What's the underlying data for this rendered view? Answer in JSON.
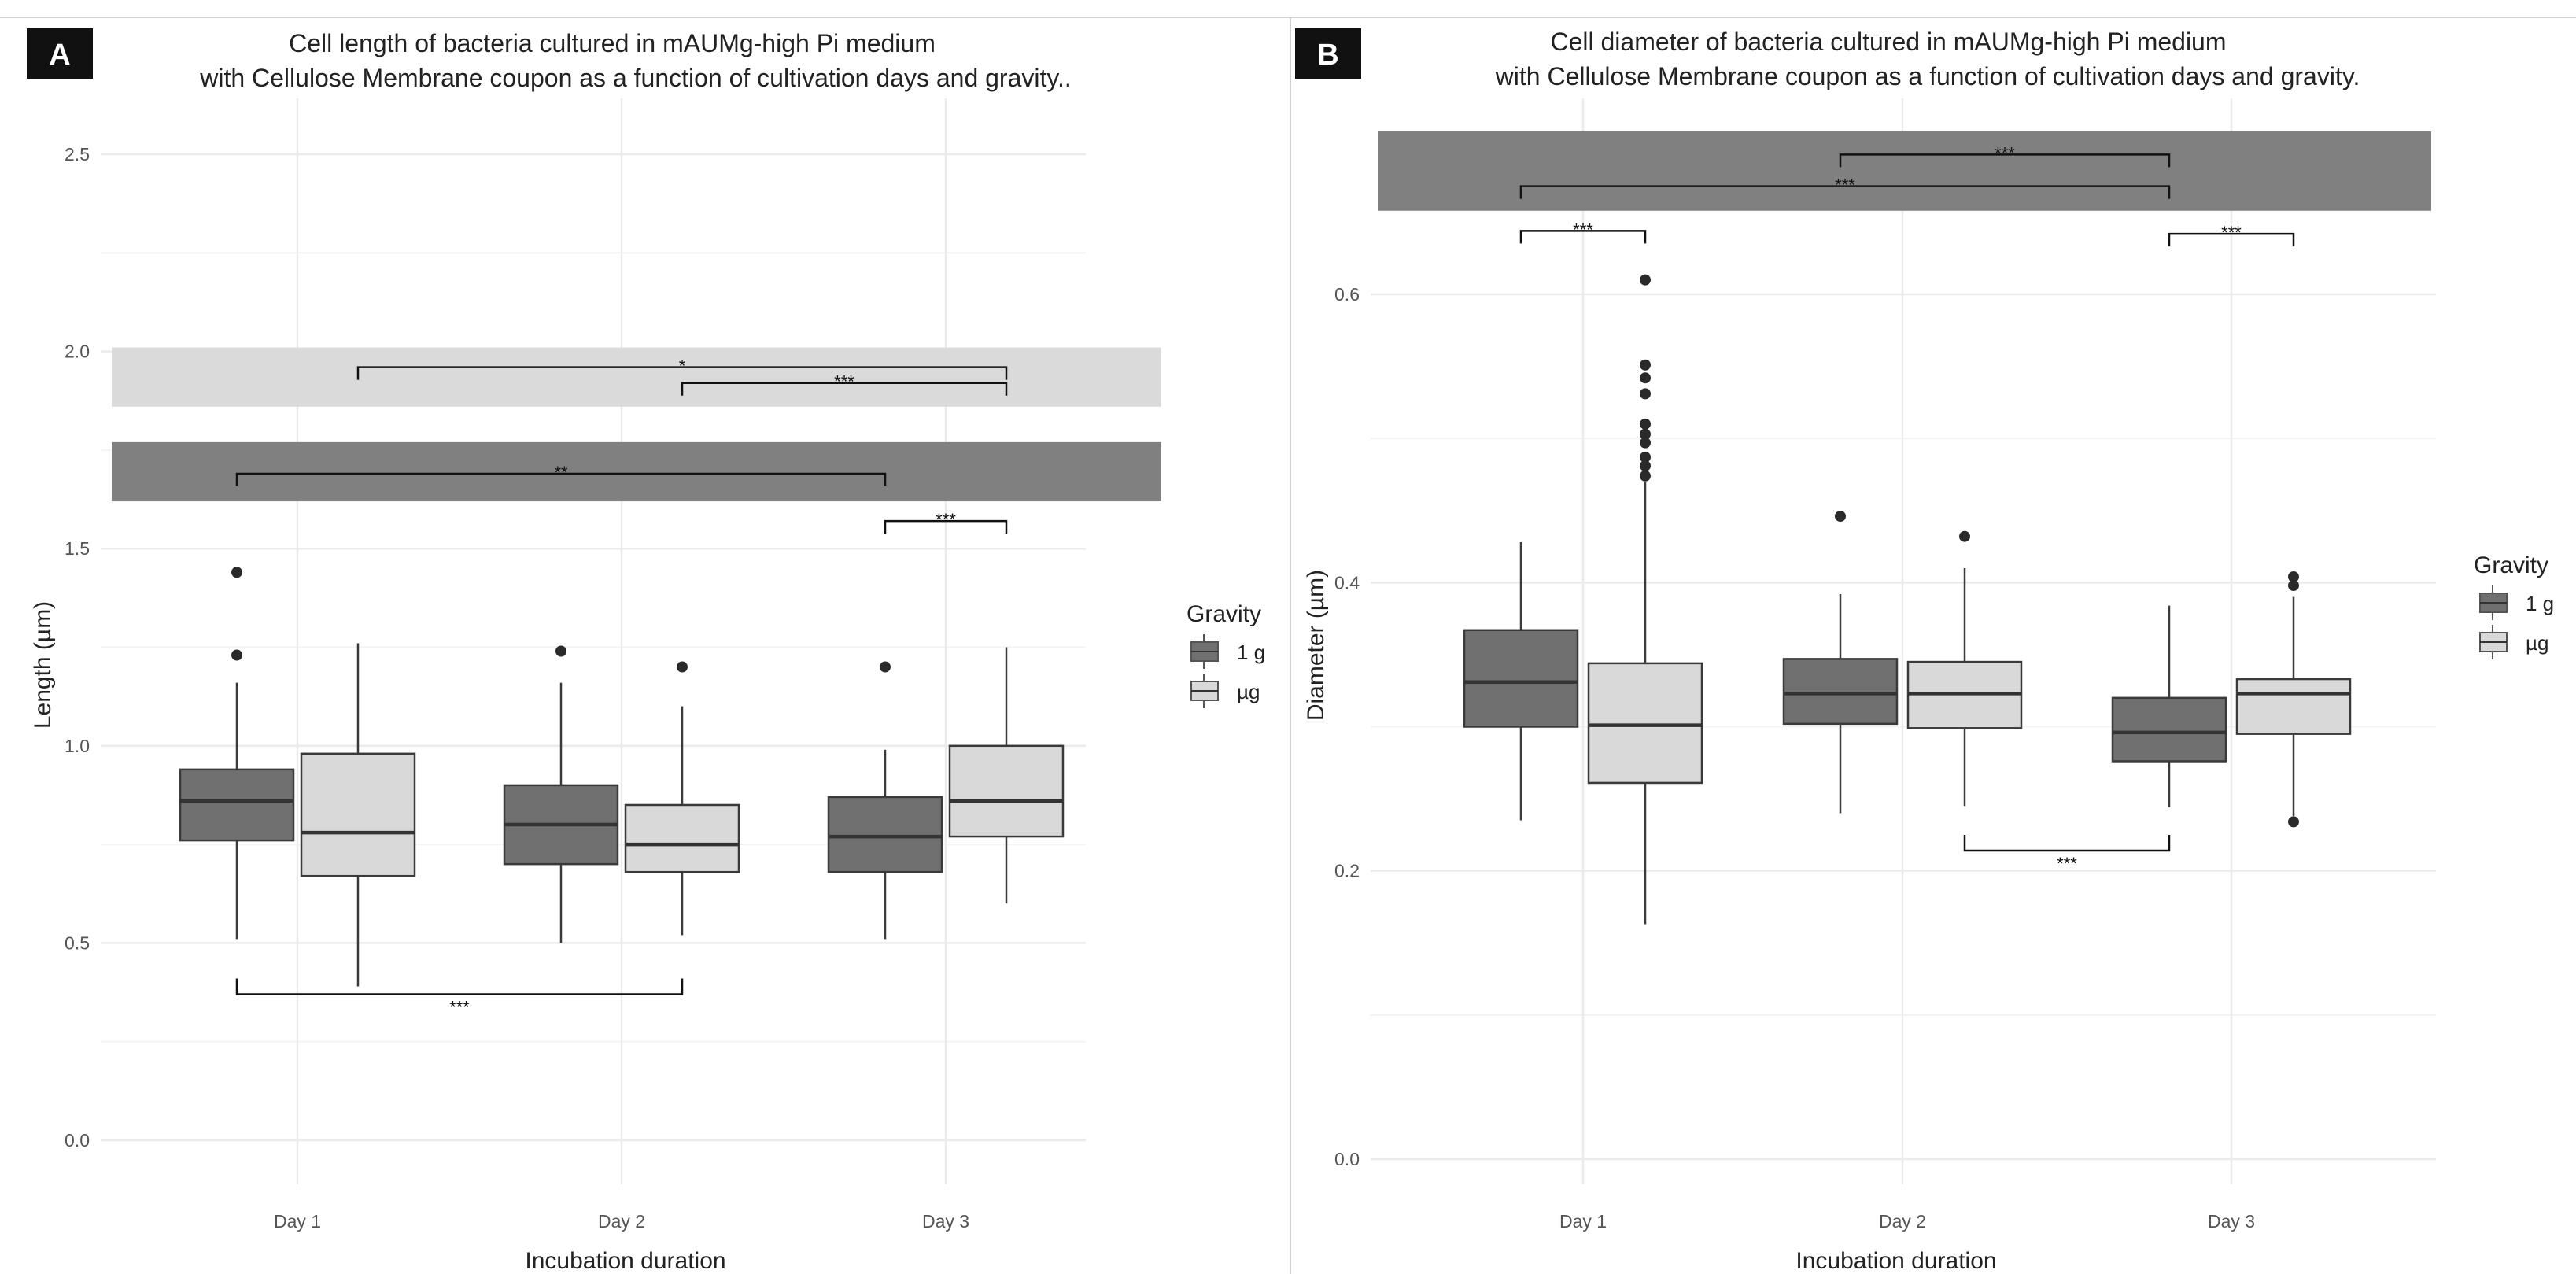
{
  "figure": {
    "colors": {
      "g1": "#707070",
      "ug": "#d9d9d9",
      "band_dark": "#808080",
      "band_light": "#dadada",
      "line": "#3a3a3a",
      "grid": "#ebebeb"
    }
  },
  "chart_data": [
    {
      "panel": "A",
      "type": "boxplot",
      "title_line1": "Cell length of bacteria cultured in mAUMg-high Pi medium",
      "title_line2": "with Cellulose Membrane coupon as a function of cultivation days and gravity..",
      "xlabel": "Incubation duration",
      "ylabel": "Length (µm)",
      "ylim": [
        -0.1,
        2.6
      ],
      "yticks": [
        0.0,
        0.5,
        1.0,
        1.5,
        2.0,
        2.5
      ],
      "ytick_labels": [
        "0.0",
        "0.5",
        "1.0",
        "1.5",
        "2.0",
        "2.5"
      ],
      "minor_grid": [
        0.25,
        0.75,
        1.25,
        1.75,
        2.25
      ],
      "categories": [
        "Day 1",
        "Day 2",
        "Day 3"
      ],
      "legend": {
        "title": "Gravity",
        "entries": [
          "1 g",
          "µg"
        ],
        "position": "right"
      },
      "series": [
        {
          "name": "1 g",
          "boxes": [
            {
              "min": 0.51,
              "q1": 0.76,
              "median": 0.86,
              "q3": 0.94,
              "max": 1.16,
              "outliers": [
                1.23,
                1.44
              ]
            },
            {
              "min": 0.5,
              "q1": 0.7,
              "median": 0.8,
              "q3": 0.9,
              "max": 1.16,
              "outliers": [
                1.24
              ]
            },
            {
              "min": 0.51,
              "q1": 0.68,
              "median": 0.77,
              "q3": 0.87,
              "max": 0.99,
              "outliers": [
                1.2
              ]
            }
          ]
        },
        {
          "name": "µg",
          "boxes": [
            {
              "min": 0.39,
              "q1": 0.67,
              "median": 0.78,
              "q3": 0.98,
              "max": 1.26,
              "outliers": []
            },
            {
              "min": 0.52,
              "q1": 0.68,
              "median": 0.75,
              "q3": 0.85,
              "max": 1.1,
              "outliers": [
                1.2
              ]
            },
            {
              "min": 0.6,
              "q1": 0.77,
              "median": 0.86,
              "q3": 1.0,
              "max": 1.25,
              "outliers": []
            }
          ]
        }
      ],
      "bands": [
        {
          "shade": "light",
          "from": 1.86,
          "to": 2.01
        },
        {
          "shade": "dark",
          "from": 1.62,
          "to": 1.77
        }
      ],
      "brackets": [
        {
          "from": "Day 1 µg",
          "to": "Day 3 µg",
          "y": 1.96,
          "label": "*",
          "tick": "down"
        },
        {
          "from": "Day 2 µg",
          "to": "Day 3 µg",
          "y": 1.92,
          "label": "***",
          "tick": "down"
        },
        {
          "from": "Day 1 1 g",
          "to": "Day 3 1 g",
          "y": 1.69,
          "label": "**",
          "tick": "down"
        },
        {
          "from": "Day 3 1 g",
          "to": "Day 3 µg",
          "y": 1.57,
          "label": "***",
          "tick": "down"
        },
        {
          "from": "Day 1 1 g",
          "to": "Day 2 µg",
          "y": 0.37,
          "label": "***",
          "tick": "up"
        }
      ]
    },
    {
      "panel": "B",
      "type": "boxplot",
      "title_line1": "Cell diameter of bacteria cultured in mAUMg-high Pi medium",
      "title_line2": "with Cellulose Membrane coupon as a function of cultivation days and gravity.",
      "xlabel": "Incubation duration",
      "ylabel": "Diameter (µm)",
      "ylim": [
        -0.03,
        0.72
      ],
      "yticks": [
        0.0,
        0.2,
        0.4,
        0.6
      ],
      "ytick_labels": [
        "0.0",
        "0.2",
        "0.4",
        "0.6"
      ],
      "minor_grid": [
        0.1,
        0.3,
        0.5
      ],
      "categories": [
        "Day 1",
        "Day 2",
        "Day 3"
      ],
      "legend": {
        "title": "Gravity",
        "entries": [
          "1 g",
          "µg"
        ],
        "position": "right"
      },
      "series": [
        {
          "name": "1 g",
          "boxes": [
            {
              "min": 0.235,
              "q1": 0.3,
              "median": 0.331,
              "q3": 0.367,
              "max": 0.428,
              "outliers": []
            },
            {
              "min": 0.24,
              "q1": 0.302,
              "median": 0.323,
              "q3": 0.347,
              "max": 0.392,
              "outliers": [
                0.446
              ]
            },
            {
              "min": 0.244,
              "q1": 0.276,
              "median": 0.296,
              "q3": 0.32,
              "max": 0.384,
              "outliers": []
            }
          ]
        },
        {
          "name": "µg",
          "boxes": [
            {
              "min": 0.163,
              "q1": 0.261,
              "median": 0.301,
              "q3": 0.344,
              "max": 0.47,
              "outliers": [
                0.474,
                0.481,
                0.487,
                0.497,
                0.503,
                0.51,
                0.531,
                0.542,
                0.551,
                0.61
              ]
            },
            {
              "min": 0.245,
              "q1": 0.299,
              "median": 0.323,
              "q3": 0.345,
              "max": 0.41,
              "outliers": [
                0.432
              ]
            },
            {
              "min": 0.238,
              "q1": 0.295,
              "median": 0.323,
              "q3": 0.333,
              "max": 0.39,
              "outliers": [
                0.234,
                0.398,
                0.404
              ]
            }
          ]
        }
      ],
      "bands": [
        {
          "shade": "dark",
          "from": 0.658,
          "to": 0.713
        }
      ],
      "brackets": [
        {
          "from": "Day 2 1 g",
          "to": "Day 3 1 g",
          "y": 0.697,
          "label": "***",
          "tick": "down"
        },
        {
          "from": "Day 1 1 g",
          "to": "Day 3 1 g",
          "y": 0.675,
          "label": "***",
          "tick": "down"
        },
        {
          "from": "Day 1 1 g",
          "to": "Day 1 µg",
          "y": 0.644,
          "label": "***",
          "tick": "down"
        },
        {
          "from": "Day 3 1 g",
          "to": "Day 3 µg",
          "y": 0.642,
          "label": "***",
          "tick": "down"
        },
        {
          "from": "Day 2 µg",
          "to": "Day 3 1 g",
          "y": 0.214,
          "label": "***",
          "tick": "up"
        }
      ]
    }
  ]
}
